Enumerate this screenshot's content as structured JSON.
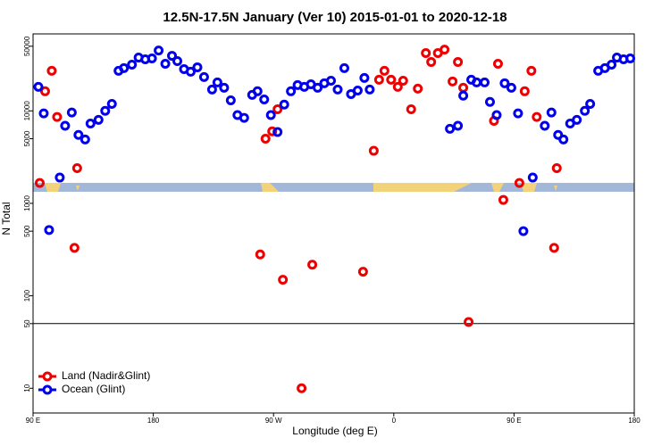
{
  "chart_data": {
    "type": "scatter",
    "title": "12.5N-17.5N January (Ver 10)   2015-01-01 to 2020-12-18",
    "x_label": "Longitude (deg E)",
    "y_label": "N Total",
    "log_y": true,
    "hline": 50,
    "legend": "bottom-left",
    "xlim": [
      90,
      540
    ],
    "xticks": [
      {
        "value": 90,
        "label": "90 E"
      },
      {
        "value": 180,
        "label": "180"
      },
      {
        "value": 270,
        "label": "90 W"
      },
      {
        "value": 360,
        "label": "0"
      },
      {
        "value": 450,
        "label": "90 E"
      },
      {
        "value": 540,
        "label": "180"
      }
    ],
    "ylim": [
      5.4,
      68000
    ],
    "yticks": [
      10,
      50,
      100,
      500,
      1000,
      5000,
      10000,
      50000
    ],
    "series": [
      {
        "name": "Land (Nadir&Glint)",
        "color": "#ee0000",
        "x": [
          95,
          99,
          104,
          108,
          123,
          121,
          260,
          264,
          269,
          273,
          277,
          291,
          299,
          337,
          345,
          349,
          353,
          358,
          363,
          367,
          373,
          378,
          384,
          388,
          393,
          398,
          404,
          408,
          412,
          416,
          435,
          438,
          442,
          454,
          458,
          463,
          467,
          482,
          480
        ],
        "values": [
          1660,
          16300,
          27100,
          8600,
          2400,
          330,
          280,
          5000,
          6000,
          10400,
          149,
          10,
          217,
          182,
          3700,
          21700,
          27100,
          21700,
          18200,
          21200,
          10400,
          17400,
          42200,
          33800,
          42200,
          46000,
          20800,
          33800,
          17800,
          52,
          7800,
          32300,
          1090,
          1660,
          16300,
          27100,
          8600,
          2400,
          330
        ]
      },
      {
        "name": "Ocean (Glint)",
        "color": "#0000ee",
        "x": [
          94,
          98,
          102,
          110,
          114,
          119,
          124,
          129,
          133,
          139,
          144,
          149,
          154,
          158,
          164,
          169,
          174,
          179,
          184,
          189,
          194,
          198,
          203,
          208,
          213,
          218,
          224,
          228,
          233,
          238,
          243,
          248,
          254,
          258,
          263,
          268,
          273,
          278,
          283,
          288,
          293,
          298,
          303,
          308,
          313,
          318,
          323,
          328,
          333,
          338,
          342,
          402,
          408,
          412,
          418,
          422,
          428,
          432,
          437,
          443,
          448,
          453,
          457,
          464,
          473,
          478,
          483,
          487,
          492,
          497,
          503,
          507,
          513,
          518,
          523,
          527,
          532,
          537
        ],
        "values": [
          18200,
          9400,
          515,
          1900,
          6900,
          9600,
          5500,
          4900,
          7300,
          8000,
          10000,
          11900,
          27100,
          29000,
          31600,
          37700,
          36100,
          36900,
          45000,
          32300,
          39400,
          34500,
          28300,
          26500,
          29600,
          23200,
          17000,
          20300,
          17800,
          13000,
          9000,
          8400,
          14900,
          16300,
          13300,
          9000,
          5900,
          11700,
          16300,
          19000,
          18200,
          19400,
          17800,
          19900,
          21200,
          17000,
          29000,
          15200,
          16600,
          22700,
          17000,
          6400,
          6900,
          14600,
          21700,
          20300,
          20300,
          12500,
          9000,
          19900,
          17800,
          9400,
          500,
          1900,
          6900,
          9600,
          5500,
          4900,
          7300,
          8000,
          10000,
          11900,
          27100,
          29000,
          31600,
          37700,
          36100,
          36900
        ]
      }
    ]
  }
}
